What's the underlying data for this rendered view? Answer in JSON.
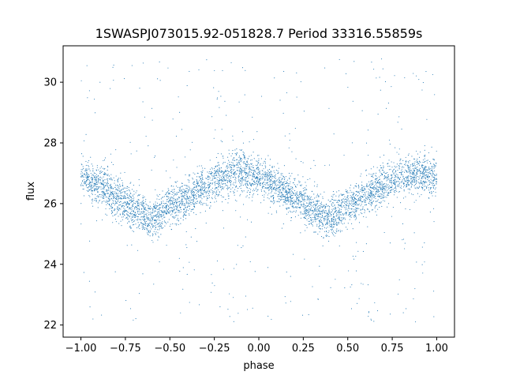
{
  "chart_data": {
    "type": "scatter",
    "title": "1SWASPJ073015.92-051828.7 Period 33316.55859s",
    "xlabel": "phase",
    "ylabel": "flux",
    "xlim": [
      -1.1,
      1.1
    ],
    "ylim": [
      21.6,
      31.2
    ],
    "x_ticks": [
      -1.0,
      -0.75,
      -0.5,
      -0.25,
      0.0,
      0.25,
      0.5,
      0.75,
      1.0
    ],
    "x_tick_labels": [
      "−1.00",
      "−0.75",
      "−0.50",
      "−0.25",
      "0.00",
      "0.25",
      "0.50",
      "0.75",
      "1.00"
    ],
    "y_ticks": [
      22,
      24,
      26,
      28,
      30
    ],
    "y_tick_labels": [
      "22",
      "24",
      "26",
      "28",
      "30"
    ],
    "grid": false,
    "legend": "none",
    "marker_color": "#1f77b4",
    "series": [
      {
        "phase_flux_trend": {
          "x": [
            -1.0,
            -0.9,
            -0.8,
            -0.7,
            -0.6,
            -0.5,
            -0.4,
            -0.3,
            -0.2,
            -0.1,
            0.0,
            0.1,
            0.2,
            0.3,
            0.4,
            0.5,
            0.6,
            0.7,
            0.8,
            0.9,
            1.0
          ],
          "y": [
            26.9,
            26.6,
            26.2,
            25.8,
            25.5,
            25.9,
            26.2,
            26.6,
            26.9,
            27.1,
            26.9,
            26.6,
            26.2,
            25.8,
            25.5,
            25.9,
            26.3,
            26.6,
            26.9,
            27.0,
            26.9
          ]
        },
        "scatter_sigma": 0.32,
        "outlier_fraction": 0.07,
        "outlier_range": [
          22.1,
          30.8
        ],
        "point_count": 5200
      }
    ]
  }
}
